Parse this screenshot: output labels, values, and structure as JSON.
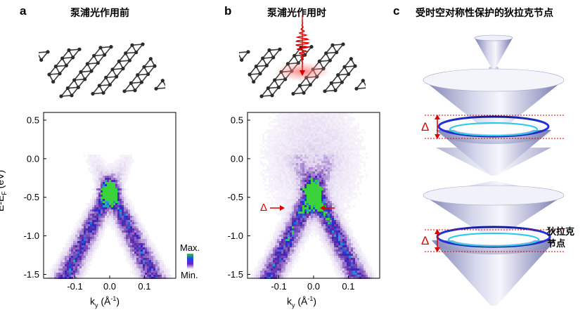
{
  "panels": [
    {
      "letter": "a",
      "title": "泵浦光作用前"
    },
    {
      "letter": "b",
      "title": "泵浦光作用时"
    },
    {
      "letter": "c",
      "title": "受时空对称性保护的狄拉克节点"
    }
  ],
  "colorbar": {
    "max_label": "Max.",
    "min_label": "Min."
  },
  "axes": {
    "ylabel": "E-E",
    "ylabel_sub": "F",
    "ylabel_unit": " (eV)",
    "xlabel": "k",
    "xlabel_sub": "y",
    "xlabel_unit": " (Å",
    "xlabel_sup": "-1",
    "xlabel_close": ")"
  },
  "panel_b_annotation": {
    "gap_symbol": "Δ"
  },
  "panel_c": {
    "gap_symbol_top": "Δ",
    "gap_symbol_bottom": "Δ",
    "node_label_line1": "狄拉克",
    "node_label_line2": "节点"
  },
  "chart_data": [
    {
      "type": "heatmap",
      "panel": "a",
      "title": "泵浦光作用前",
      "xlabel": "ky (Å-1)",
      "ylabel": "E-EF (eV)",
      "xlim": [
        -0.19,
        0.19
      ],
      "ylim": [
        -1.55,
        0.6
      ],
      "xticks": [
        -0.1,
        0.0,
        0.1
      ],
      "xtick_labels": [
        "-0.1",
        "0.0",
        "0.1"
      ],
      "yticks": [
        0.5,
        0.0,
        -0.5,
        -1.0,
        -1.5
      ],
      "ytick_labels": [
        "0.5",
        "0.0",
        "-0.5",
        "-1.0",
        "-1.5"
      ],
      "dirac_point": {
        "k": 0.0,
        "E": -0.4
      },
      "band_velocity_slope": 9.0,
      "colorscale": "Min. white → purple → blue → green → Max."
    },
    {
      "type": "heatmap",
      "panel": "b",
      "title": "泵浦光作用时",
      "xlabel": "ky (Å-1)",
      "ylabel": "E-EF (eV)",
      "xlim": [
        -0.19,
        0.19
      ],
      "ylim": [
        -1.55,
        0.6
      ],
      "xticks": [
        -0.1,
        0.0,
        0.1
      ],
      "xtick_labels": [
        "-0.1",
        "0.0",
        "0.1"
      ],
      "yticks": [
        0.5,
        0.0,
        -0.5,
        -1.0,
        -1.5
      ],
      "ytick_labels": [
        "0.5",
        "0.0",
        "-0.5",
        "-1.0",
        "-1.5"
      ],
      "dirac_point": {
        "k": 0.0,
        "E": -0.4
      },
      "band_velocity_slope": 9.0,
      "gap_marker_E": -0.65,
      "colorscale": "Min. white → purple → blue → green → Max."
    }
  ]
}
